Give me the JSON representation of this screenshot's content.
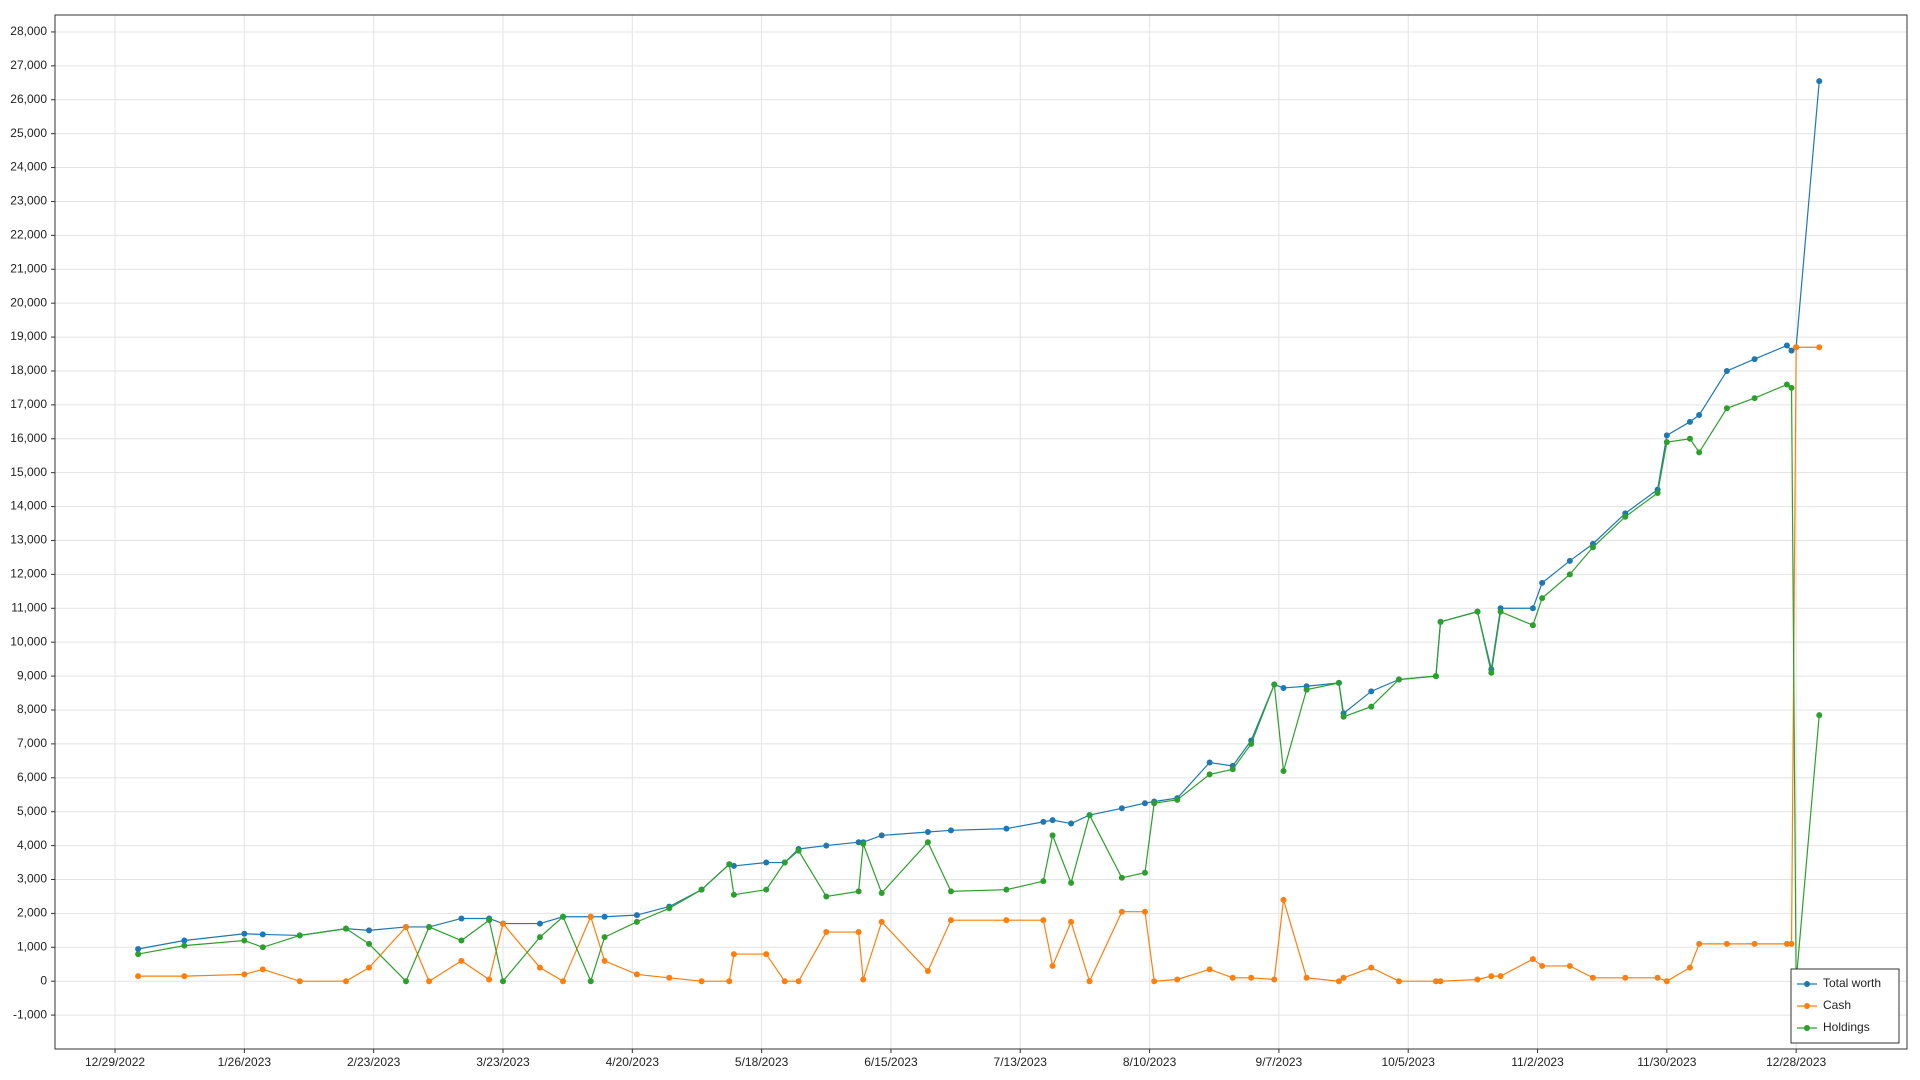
{
  "chart_data": {
    "type": "line",
    "x": [
      "2023-01-03",
      "2023-01-13",
      "2023-01-26",
      "2023-01-30",
      "2023-02-07",
      "2023-02-17",
      "2023-02-22",
      "2023-03-02",
      "2023-03-07",
      "2023-03-14",
      "2023-03-20",
      "2023-03-23",
      "2023-03-31",
      "2023-04-05",
      "2023-04-11",
      "2023-04-14",
      "2023-04-21",
      "2023-04-28",
      "2023-05-05",
      "2023-05-11",
      "2023-05-12",
      "2023-05-19",
      "2023-05-23",
      "2023-05-26",
      "2023-06-01",
      "2023-06-08",
      "2023-06-09",
      "2023-06-13",
      "2023-06-23",
      "2023-06-28",
      "2023-07-10",
      "2023-07-18",
      "2023-07-20",
      "2023-07-24",
      "2023-07-28",
      "2023-08-04",
      "2023-08-09",
      "2023-08-11",
      "2023-08-16",
      "2023-08-23",
      "2023-08-28",
      "2023-09-01",
      "2023-09-06",
      "2023-09-08",
      "2023-09-13",
      "2023-09-20",
      "2023-09-21",
      "2023-09-27",
      "2023-10-03",
      "2023-10-11",
      "2023-10-12",
      "2023-10-20",
      "2023-10-23",
      "2023-10-25",
      "2023-11-01",
      "2023-11-03",
      "2023-11-09",
      "2023-11-14",
      "2023-11-21",
      "2023-11-28",
      "2023-11-30",
      "2023-12-05",
      "2023-12-07",
      "2023-12-13",
      "2023-12-19",
      "2023-12-26",
      "2023-12-27",
      "2023-12-28",
      "2024-01-02"
    ],
    "series": [
      {
        "name": "Total worth",
        "color": "#1f77b4",
        "values": [
          950,
          1200,
          1400,
          1380,
          1350,
          1550,
          1500,
          1600,
          1600,
          1850,
          1850,
          1700,
          1700,
          1900,
          1900,
          1900,
          1950,
          2200,
          2700,
          3450,
          3400,
          3500,
          3500,
          3900,
          4000,
          4100,
          4100,
          4300,
          4400,
          4450,
          4500,
          4700,
          4750,
          4650,
          4900,
          5100,
          5250,
          5300,
          5400,
          6450,
          6350,
          7100,
          8750,
          8650,
          8700,
          8800,
          7900,
          8550,
          8900,
          9000,
          10600,
          10900,
          9200,
          11000,
          11000,
          11750,
          12400,
          12900,
          13800,
          14500,
          16100,
          16500,
          16700,
          18000,
          18350,
          18750,
          18600,
          18700,
          26550
        ]
      },
      {
        "name": "Cash",
        "color": "#ff7f0e",
        "values": [
          150,
          150,
          200,
          350,
          0,
          0,
          400,
          1600,
          0,
          600,
          50,
          1700,
          400,
          0,
          1900,
          600,
          200,
          100,
          0,
          0,
          800,
          800,
          0,
          0,
          1450,
          1450,
          50,
          1750,
          300,
          1800,
          1800,
          1800,
          450,
          1750,
          0,
          2050,
          2050,
          0,
          50,
          350,
          100,
          100,
          50,
          2400,
          100,
          0,
          100,
          400,
          0,
          0,
          0,
          50,
          150,
          150,
          650,
          450,
          450,
          100,
          100,
          100,
          0,
          400,
          1100,
          1100,
          1100,
          1100,
          1100,
          18700,
          18700
        ]
      },
      {
        "name": "Holdings",
        "color": "#2ca02c",
        "values": [
          800,
          1050,
          1200,
          1000,
          1350,
          1550,
          1100,
          0,
          1600,
          1200,
          1800,
          0,
          1300,
          1900,
          0,
          1300,
          1750,
          2150,
          2700,
          3450,
          2550,
          2700,
          3500,
          3850,
          2500,
          2650,
          4050,
          2600,
          4100,
          2650,
          2700,
          2950,
          4300,
          2900,
          4900,
          3050,
          3200,
          5250,
          5350,
          6100,
          6250,
          7000,
          8750,
          6200,
          8600,
          8800,
          7800,
          8100,
          8900,
          9000,
          10600,
          10900,
          9100,
          10900,
          10500,
          11300,
          12000,
          12800,
          13700,
          14400,
          15900,
          16000,
          15600,
          16900,
          17200,
          17600,
          17500,
          0,
          7850
        ]
      }
    ],
    "xlim": [
      "2022-12-16",
      "2024-01-21"
    ],
    "xticks": [
      {
        "value": "2022-12-29",
        "label": "12/29/2022"
      },
      {
        "value": "2023-01-26",
        "label": "1/26/2023"
      },
      {
        "value": "2023-02-23",
        "label": "2/23/2023"
      },
      {
        "value": "2023-03-23",
        "label": "3/23/2023"
      },
      {
        "value": "2023-04-20",
        "label": "4/20/2023"
      },
      {
        "value": "2023-05-18",
        "label": "5/18/2023"
      },
      {
        "value": "2023-06-15",
        "label": "6/15/2023"
      },
      {
        "value": "2023-07-13",
        "label": "7/13/2023"
      },
      {
        "value": "2023-08-10",
        "label": "8/10/2023"
      },
      {
        "value": "2023-09-07",
        "label": "9/7/2023"
      },
      {
        "value": "2023-10-05",
        "label": "10/5/2023"
      },
      {
        "value": "2023-11-02",
        "label": "11/2/2023"
      },
      {
        "value": "2023-11-30",
        "label": "11/30/2023"
      },
      {
        "value": "2023-12-28",
        "label": "12/28/2023"
      }
    ],
    "ylim": [
      -2000,
      28500
    ],
    "yticks": [
      {
        "value": -1000,
        "label": "-1,000"
      },
      0,
      {
        "value": 1000,
        "label": "1,000"
      },
      {
        "value": 2000,
        "label": "2,000"
      },
      {
        "value": 3000,
        "label": "3,000"
      },
      {
        "value": 4000,
        "label": "4,000"
      },
      {
        "value": 5000,
        "label": "5,000"
      },
      {
        "value": 6000,
        "label": "6,000"
      },
      {
        "value": 7000,
        "label": "7,000"
      },
      {
        "value": 8000,
        "label": "8,000"
      },
      {
        "value": 9000,
        "label": "9,000"
      },
      {
        "value": 10000,
        "label": "10,000"
      },
      {
        "value": 11000,
        "label": "11,000"
      },
      {
        "value": 12000,
        "label": "12,000"
      },
      {
        "value": 13000,
        "label": "13,000"
      },
      {
        "value": 14000,
        "label": "14,000"
      },
      {
        "value": 15000,
        "label": "15,000"
      },
      {
        "value": 16000,
        "label": "16,000"
      },
      {
        "value": 17000,
        "label": "17,000"
      },
      {
        "value": 18000,
        "label": "18,000"
      },
      {
        "value": 19000,
        "label": "19,000"
      },
      {
        "value": 20000,
        "label": "20,000"
      },
      {
        "value": 21000,
        "label": "21,000"
      },
      {
        "value": 22000,
        "label": "22,000"
      },
      {
        "value": 23000,
        "label": "23,000"
      },
      {
        "value": 24000,
        "label": "24,000"
      },
      {
        "value": 25000,
        "label": "25,000"
      },
      {
        "value": 26000,
        "label": "26,000"
      },
      {
        "value": 27000,
        "label": "27,000"
      },
      {
        "value": 28000,
        "label": "28,000"
      }
    ],
    "grid": true,
    "legend": "bottom-right"
  }
}
